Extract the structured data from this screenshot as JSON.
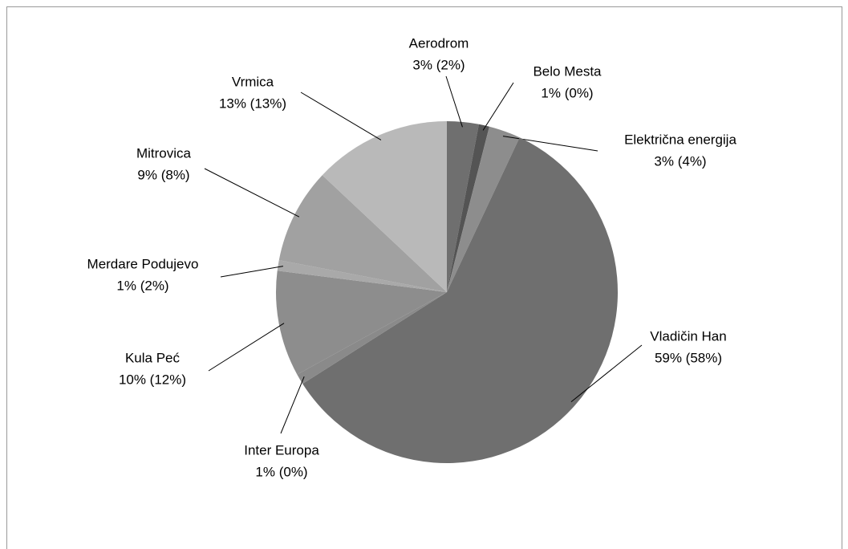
{
  "chart_data": {
    "type": "pie",
    "categories": [
      "Aerodrom",
      "Belo Mesta",
      "Električna energija",
      "Vladičin Han",
      "Inter Europa",
      "Kula Peć",
      "Merdare Podujevo",
      "Mitrovica",
      "Vrmica"
    ],
    "values": [
      3,
      1,
      3,
      59,
      1,
      10,
      1,
      9,
      13
    ],
    "value_labels": [
      "3% (2%)",
      "1% (0%)",
      "3% (4%)",
      "59% (58%)",
      "1% (0%)",
      "10% (12%)",
      "1% (2%)",
      "9% (8%)",
      "13%  (13%)"
    ],
    "colors": [
      "#6f6f6f",
      "#545454",
      "#8d8d8d",
      "#6f6f6f",
      "#8a8a8a",
      "#8d8d8d",
      "#a9a9a9",
      "#a1a1a1",
      "#b9b9b9"
    ]
  }
}
